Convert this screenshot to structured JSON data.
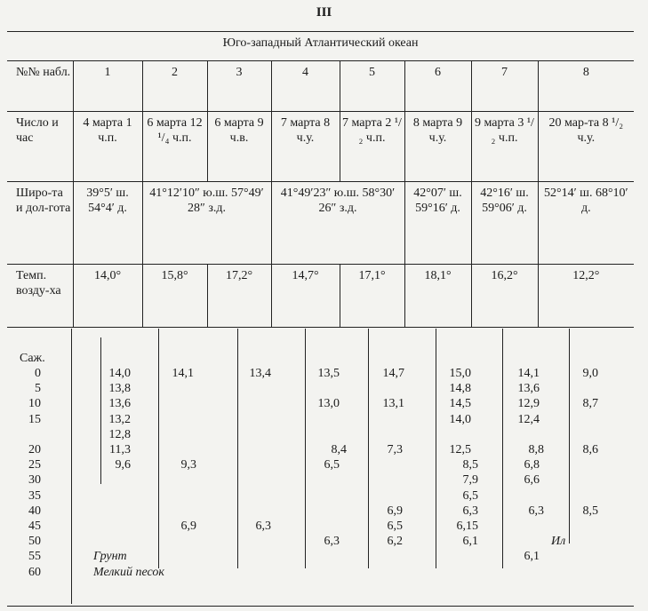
{
  "page_number": "III",
  "table": {
    "title": "Юго-западный Атлантический океан",
    "rows": [
      {
        "label": "№№ набл.",
        "cells": [
          {
            "text": "1",
            "span": 1
          },
          {
            "text": "2",
            "span": 1
          },
          {
            "text": "3",
            "span": 1
          },
          {
            "text": "4",
            "span": 1
          },
          {
            "text": "5",
            "span": 1
          },
          {
            "text": "6",
            "span": 1
          },
          {
            "text": "7",
            "span": 1
          },
          {
            "text": "8",
            "span": 1
          }
        ]
      },
      {
        "label": "Число и час",
        "cells": [
          {
            "text": "4 марта 1 ч.п.",
            "span": 1
          },
          {
            "text": "6 марта 12 ¹/₄ ч.п.",
            "span": 1
          },
          {
            "text": "6 марта 9 ч.в.",
            "span": 1
          },
          {
            "text": "7 марта 8 ч.у.",
            "span": 1
          },
          {
            "text": "7 марта 2 ¹/₂ ч.п.",
            "span": 1
          },
          {
            "text": "8 марта 9 ч.у.",
            "span": 1
          },
          {
            "text": "9 марта 3 ¹/₂ ч.п.",
            "span": 1
          },
          {
            "text": "20 мар-та 8 ¹/₂ ч.у.",
            "span": 1
          }
        ]
      },
      {
        "label": "Широ-та и дол-гота",
        "cells": [
          {
            "text": "39°5′ ш. 54°4′ д.",
            "span": 1
          },
          {
            "text": "41°12′10″ ю.ш. 57°49′ 28″ з.д.",
            "span": 2
          },
          {
            "text": "41°49′23″ ю.ш. 58°30′ 26″ з.д.",
            "span": 2
          },
          {
            "text": "42°07′ ш. 59°16′ д.",
            "span": 1
          },
          {
            "text": "42°16′ ш. 59°06′ д.",
            "span": 1
          },
          {
            "text": "52°14′ ш. 68°10′ д.",
            "span": 1
          }
        ]
      },
      {
        "label": "Темп. возду-ха",
        "cells": [
          {
            "text": "14,0°",
            "span": 1
          },
          {
            "text": "15,8°",
            "span": 1
          },
          {
            "text": "17,2°",
            "span": 1
          },
          {
            "text": "14,7°",
            "span": 1
          },
          {
            "text": "17,1°",
            "span": 1
          },
          {
            "text": "18,1°",
            "span": 1
          },
          {
            "text": "16,2°",
            "span": 1
          },
          {
            "text": "12,2°",
            "span": 1
          }
        ]
      }
    ],
    "depth_header": "Саж.",
    "depths": [
      "0",
      "5",
      "10",
      "15",
      "",
      "20",
      "25",
      "30",
      "35",
      "40",
      "45",
      "50",
      "55",
      "60"
    ],
    "columns": [
      [
        "14,0",
        "13,8",
        "13,6",
        "13,2",
        "12,8",
        "11,3",
        "9,6",
        null,
        null,
        null,
        null,
        null,
        null,
        null
      ],
      [
        "14,1",
        null,
        null,
        null,
        null,
        null,
        "9,3",
        null,
        null,
        null,
        "6,9",
        null,
        null,
        null
      ],
      [
        "13,4",
        null,
        null,
        null,
        null,
        null,
        null,
        null,
        null,
        null,
        "6,3",
        null,
        null,
        null
      ],
      [
        "13,5",
        null,
        "13,0",
        null,
        null,
        "8,4",
        "6,5",
        null,
        null,
        null,
        null,
        "6,3",
        null,
        null
      ],
      [
        "14,7",
        null,
        "13,1",
        null,
        null,
        "7,3",
        null,
        null,
        null,
        "6,9",
        "6,5",
        "6,2",
        null,
        null
      ],
      [
        "15,0",
        "14,8",
        "14,5",
        "14,0",
        null,
        "12,5",
        "8,5",
        "7,9",
        "6,5",
        "6,3",
        "6,15",
        "6,1",
        null,
        null
      ],
      [
        "14,1",
        "13,6",
        "12,9",
        "12,4",
        null,
        "8,8",
        "6,8",
        "6,6",
        null,
        "6,3",
        null,
        null,
        "6,1",
        null
      ],
      [
        "9,0",
        null,
        "8,7",
        null,
        null,
        "8,6",
        null,
        null,
        null,
        "8,5",
        null,
        null,
        null,
        null
      ]
    ],
    "notes": {
      "bottom_col8": "Ил",
      "ground_label": "Грунт",
      "ground_value": "Мелкий песок"
    }
  }
}
